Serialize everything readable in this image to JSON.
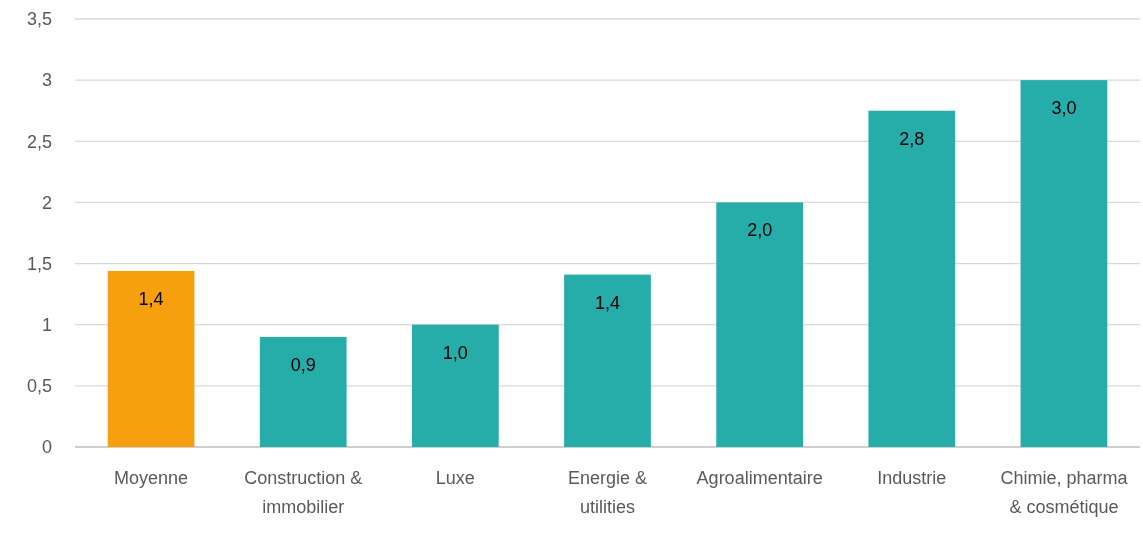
{
  "chart_data": {
    "type": "bar",
    "categories": [
      "Moyenne",
      "Construction & immobilier",
      "Luxe",
      "Energie & utilities",
      "Agroalimentaire",
      "Industrie",
      "Chimie, pharma & cosmétique"
    ],
    "values": [
      1.44,
      0.9,
      1.0,
      1.41,
      2.0,
      2.75,
      3.0
    ],
    "colors": [
      "#f7a00f",
      "#26aca9",
      "#26aca9",
      "#26aca9",
      "#26aca9",
      "#26aca9",
      "#26aca9"
    ],
    "value_labels": [
      "1,4",
      "0,9",
      "1,0",
      "1,4",
      "2,0",
      "2,8",
      "3,0"
    ],
    "ylim": [
      0,
      3.5
    ],
    "yticks": [
      0,
      {
        "value": 0.5,
        "label": "0,5"
      },
      1,
      {
        "value": 1.5,
        "label": "1,5"
      },
      2,
      {
        "value": 2.5,
        "label": "2,5"
      },
      3,
      {
        "value": 3.5,
        "label": "3,5"
      }
    ],
    "grid": "y"
  }
}
